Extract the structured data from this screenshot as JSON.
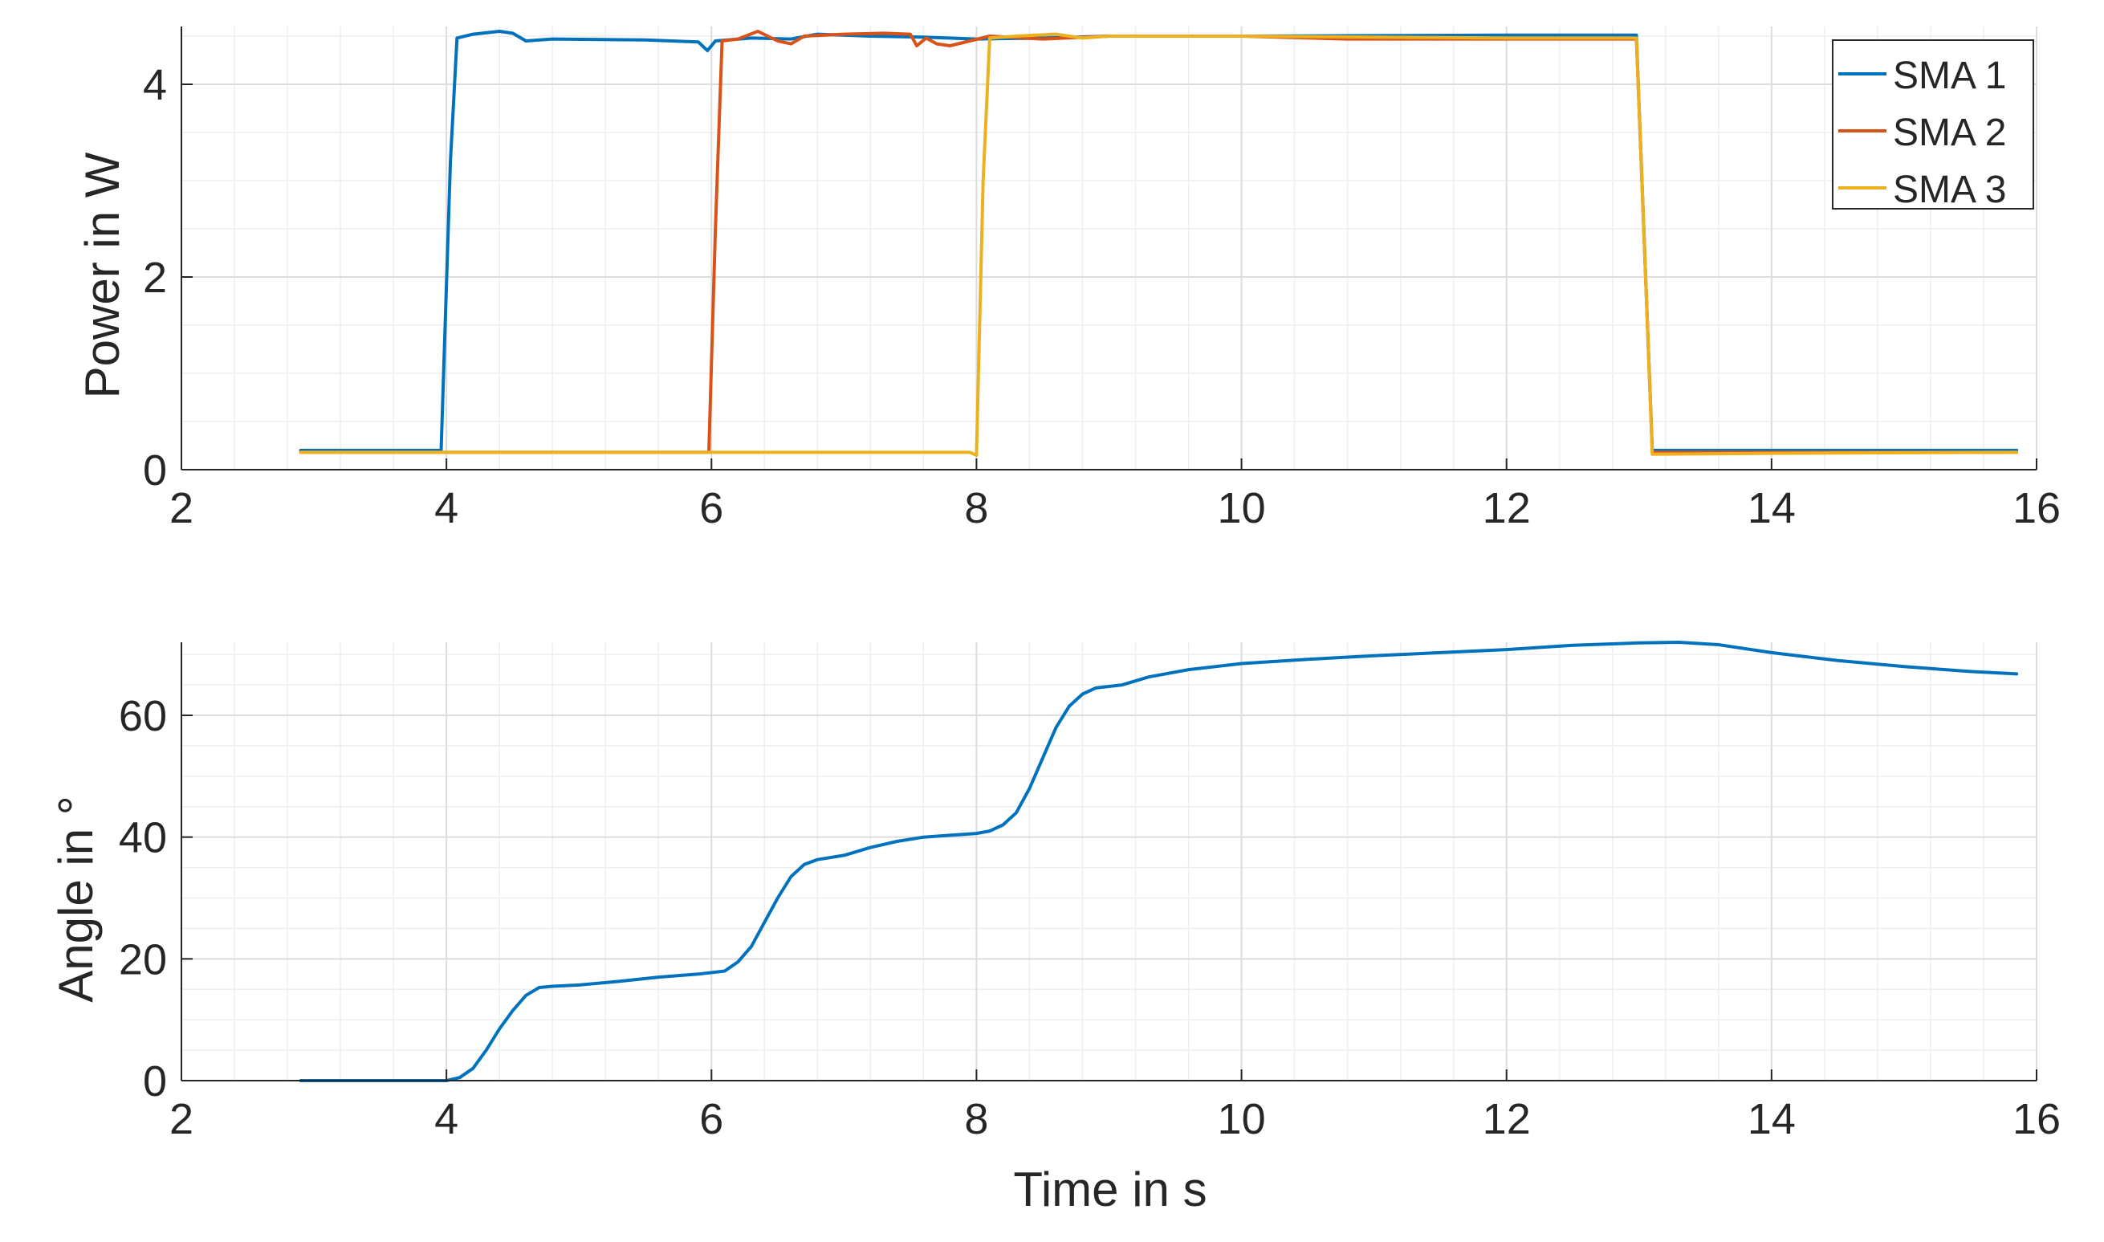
{
  "colors": {
    "sma1": "#0072BD",
    "sma2": "#D95319",
    "sma3": "#EDB120",
    "grid_major": "#dcdcdc",
    "grid_minor": "#eeeeee",
    "axis": "#262626"
  },
  "chart_data": [
    {
      "type": "line",
      "title": "",
      "xlabel": "",
      "ylabel": "Power in W",
      "xlim": [
        2,
        16
      ],
      "ylim": [
        0,
        4.6
      ],
      "xticks": [
        "2",
        "4",
        "6",
        "8",
        "10",
        "12",
        "14",
        "16"
      ],
      "yticks": [
        "0",
        "2",
        "4"
      ],
      "grid": "on (major and minor)",
      "legend_position": "top-right",
      "series": [
        {
          "name": "SMA 1",
          "color": "#0072BD",
          "points": [
            [
              2.9,
              0.2
            ],
            [
              3.96,
              0.2
            ],
            [
              4.03,
              3.2
            ],
            [
              4.08,
              4.48
            ],
            [
              4.2,
              4.52
            ],
            [
              4.4,
              4.55
            ],
            [
              4.5,
              4.53
            ],
            [
              4.6,
              4.45
            ],
            [
              4.8,
              4.47
            ],
            [
              5.5,
              4.46
            ],
            [
              5.9,
              4.44
            ],
            [
              5.97,
              4.35
            ],
            [
              6.03,
              4.45
            ],
            [
              6.3,
              4.48
            ],
            [
              6.6,
              4.47
            ],
            [
              6.8,
              4.52
            ],
            [
              7.2,
              4.5
            ],
            [
              7.6,
              4.49
            ],
            [
              8.0,
              4.47
            ],
            [
              8.5,
              4.48
            ],
            [
              9.0,
              4.5
            ],
            [
              10.0,
              4.5
            ],
            [
              12.0,
              4.51
            ],
            [
              12.98,
              4.51
            ],
            [
              13.05,
              2.0
            ],
            [
              13.1,
              0.2
            ],
            [
              14.0,
              0.2
            ],
            [
              15.85,
              0.2
            ]
          ]
        },
        {
          "name": "SMA 2",
          "color": "#D95319",
          "points": [
            [
              2.9,
              0.18
            ],
            [
              5.98,
              0.18
            ],
            [
              6.03,
              2.5
            ],
            [
              6.08,
              4.45
            ],
            [
              6.2,
              4.47
            ],
            [
              6.35,
              4.55
            ],
            [
              6.5,
              4.45
            ],
            [
              6.6,
              4.42
            ],
            [
              6.7,
              4.5
            ],
            [
              7.0,
              4.52
            ],
            [
              7.3,
              4.53
            ],
            [
              7.5,
              4.52
            ],
            [
              7.55,
              4.4
            ],
            [
              7.62,
              4.48
            ],
            [
              7.7,
              4.42
            ],
            [
              7.8,
              4.4
            ],
            [
              7.95,
              4.45
            ],
            [
              8.1,
              4.5
            ],
            [
              8.5,
              4.47
            ],
            [
              9.0,
              4.5
            ],
            [
              10.0,
              4.5
            ],
            [
              10.8,
              4.47
            ],
            [
              12.0,
              4.47
            ],
            [
              12.98,
              4.47
            ],
            [
              13.05,
              2.0
            ],
            [
              13.1,
              0.18
            ],
            [
              14.0,
              0.18
            ],
            [
              15.85,
              0.18
            ]
          ]
        },
        {
          "name": "SMA 3",
          "color": "#EDB120",
          "points": [
            [
              2.9,
              0.18
            ],
            [
              7.95,
              0.18
            ],
            [
              8.0,
              0.15
            ],
            [
              8.05,
              3.0
            ],
            [
              8.1,
              4.48
            ],
            [
              8.3,
              4.5
            ],
            [
              8.6,
              4.52
            ],
            [
              8.8,
              4.48
            ],
            [
              9.0,
              4.5
            ],
            [
              10.0,
              4.5
            ],
            [
              12.0,
              4.48
            ],
            [
              12.98,
              4.48
            ],
            [
              13.05,
              2.0
            ],
            [
              13.1,
              0.16
            ],
            [
              14.0,
              0.17
            ],
            [
              15.85,
              0.18
            ]
          ]
        }
      ]
    },
    {
      "type": "line",
      "title": "",
      "xlabel": "Time in s",
      "ylabel": "Angle in °",
      "xlim": [
        2,
        16
      ],
      "ylim": [
        0,
        72
      ],
      "xticks": [
        "2",
        "4",
        "6",
        "8",
        "10",
        "12",
        "14",
        "16"
      ],
      "yticks": [
        "0",
        "20",
        "40",
        "60"
      ],
      "grid": "on (major and minor)",
      "series": [
        {
          "color": "#0072BD",
          "points": [
            [
              2.9,
              0
            ],
            [
              3.6,
              0
            ],
            [
              4.0,
              0
            ],
            [
              4.1,
              0.5
            ],
            [
              4.2,
              2
            ],
            [
              4.3,
              5
            ],
            [
              4.4,
              8.5
            ],
            [
              4.5,
              11.5
            ],
            [
              4.6,
              14
            ],
            [
              4.7,
              15.3
            ],
            [
              4.8,
              15.5
            ],
            [
              5.0,
              15.7
            ],
            [
              5.3,
              16.3
            ],
            [
              5.6,
              17
            ],
            [
              5.9,
              17.5
            ],
            [
              6.1,
              18
            ],
            [
              6.2,
              19.5
            ],
            [
              6.3,
              22
            ],
            [
              6.4,
              26
            ],
            [
              6.5,
              30
            ],
            [
              6.6,
              33.5
            ],
            [
              6.7,
              35.5
            ],
            [
              6.8,
              36.3
            ],
            [
              7.0,
              37
            ],
            [
              7.2,
              38.3
            ],
            [
              7.4,
              39.3
            ],
            [
              7.6,
              40
            ],
            [
              7.8,
              40.3
            ],
            [
              8.0,
              40.6
            ],
            [
              8.1,
              41
            ],
            [
              8.2,
              42
            ],
            [
              8.3,
              44
            ],
            [
              8.4,
              48
            ],
            [
              8.5,
              53
            ],
            [
              8.6,
              58
            ],
            [
              8.7,
              61.5
            ],
            [
              8.8,
              63.5
            ],
            [
              8.9,
              64.5
            ],
            [
              9.1,
              65
            ],
            [
              9.3,
              66.3
            ],
            [
              9.6,
              67.5
            ],
            [
              10.0,
              68.5
            ],
            [
              10.5,
              69.2
            ],
            [
              11.0,
              69.8
            ],
            [
              11.5,
              70.3
            ],
            [
              12.0,
              70.8
            ],
            [
              12.5,
              71.5
            ],
            [
              13.0,
              71.9
            ],
            [
              13.3,
              72
            ],
            [
              13.6,
              71.6
            ],
            [
              14.0,
              70.3
            ],
            [
              14.5,
              69
            ],
            [
              15.0,
              68
            ],
            [
              15.5,
              67.2
            ],
            [
              15.85,
              66.8
            ]
          ]
        }
      ]
    }
  ]
}
